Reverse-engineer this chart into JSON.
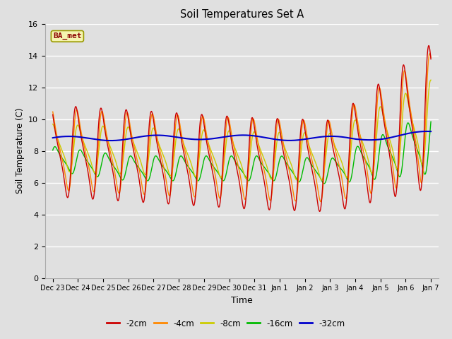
{
  "title": "Soil Temperatures Set A",
  "xlabel": "Time",
  "ylabel": "Soil Temperature (C)",
  "ylim": [
    0,
    16
  ],
  "yticks": [
    0,
    2,
    4,
    6,
    8,
    10,
    12,
    14,
    16
  ],
  "background_color": "#e0e0e0",
  "series_colors": {
    "-2cm": "#cc0000",
    "-4cm": "#ff8800",
    "-8cm": "#cccc00",
    "-16cm": "#00bb00",
    "-32cm": "#0000cc"
  },
  "x_labels": [
    "Dec 23",
    "Dec 24",
    "Dec 25",
    "Dec 26",
    "Dec 27",
    "Dec 28",
    "Dec 29",
    "Dec 30",
    "Dec 31",
    "Jan 1",
    "Jan 2",
    "Jan 3",
    "Jan 4",
    "Jan 5",
    "Jan 6",
    "Jan 7"
  ],
  "n_days": 16
}
